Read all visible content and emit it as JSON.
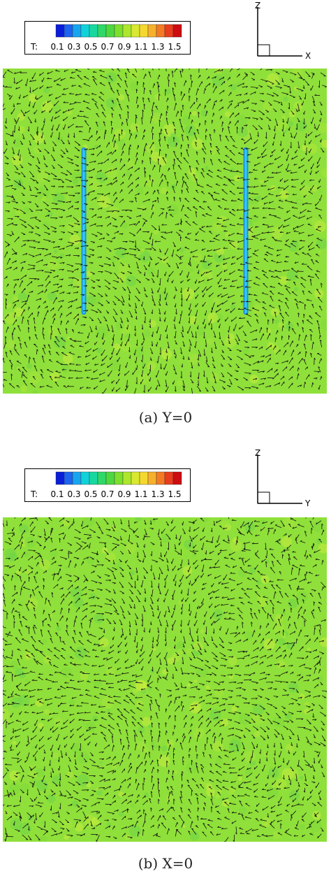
{
  "colorbar": {
    "label": "T:",
    "ticks": [
      "0.1",
      "0.3",
      "0.5",
      "0.7",
      "0.9",
      "1.1",
      "1.3",
      "1.5"
    ],
    "colors": [
      "#0a1ed8",
      "#1e64f0",
      "#17a5f0",
      "#10d2d8",
      "#18d8a0",
      "#2fd868",
      "#4ed840",
      "#7ce02c",
      "#aee62c",
      "#d8e830",
      "#f4d830",
      "#f6b02c",
      "#f47a26",
      "#ea3c1e",
      "#cc0c10"
    ],
    "field_color": "#8fe03a"
  },
  "chart_data": [
    {
      "type": "vector-field",
      "caption": "(a) Y=0",
      "axis_labels": {
        "vertical": "Z",
        "horizontal": "X"
      },
      "colorbar_range": [
        0.1,
        1.5
      ],
      "features": [
        {
          "kind": "low-T line",
          "x_fraction": 0.25,
          "z_from": 0.25,
          "z_to": 0.75,
          "value": 0.1
        },
        {
          "kind": "low-T line",
          "x_fraction": 0.75,
          "z_from": 0.25,
          "z_to": 0.75,
          "value": 0.1
        }
      ],
      "vortices": [
        {
          "x": 0.25,
          "z": 0.2,
          "sense": -1
        },
        {
          "x": 0.25,
          "z": 0.8,
          "sense": 1
        },
        {
          "x": 0.75,
          "z": 0.2,
          "sense": 1
        },
        {
          "x": 0.75,
          "z": 0.8,
          "sense": -1
        }
      ]
    },
    {
      "type": "vector-field",
      "caption": "(b) X=0",
      "axis_labels": {
        "vertical": "Z",
        "horizontal": "Y"
      },
      "colorbar_range": [
        0.1,
        1.5
      ],
      "features": [],
      "vortices": [
        {
          "x": 0.3,
          "z": 0.35,
          "sense": 1
        },
        {
          "x": 0.7,
          "z": 0.35,
          "sense": -1
        },
        {
          "x": 0.3,
          "z": 0.7,
          "sense": -1
        },
        {
          "x": 0.7,
          "z": 0.7,
          "sense": 1
        }
      ]
    }
  ]
}
